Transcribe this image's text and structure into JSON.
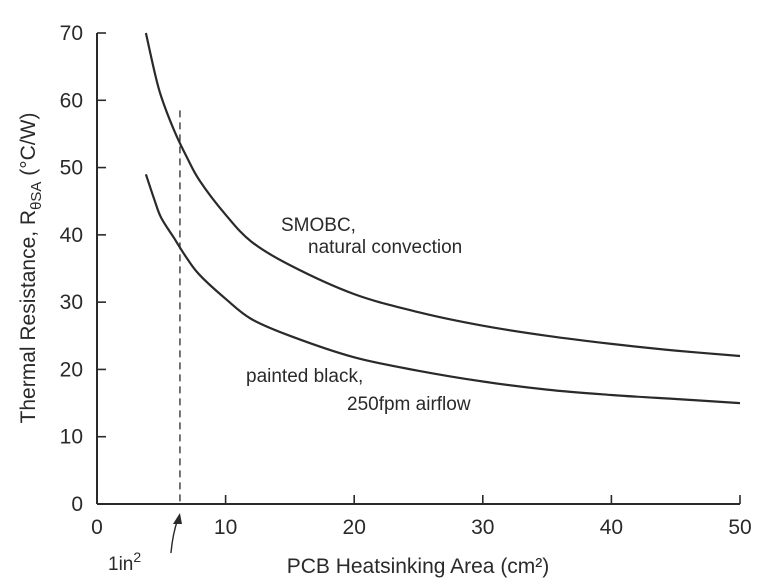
{
  "chart_data": {
    "type": "line",
    "xlabel": "PCB Heatsinking Area (cm²)",
    "ylabel_main": "Thermal Resistance, R",
    "ylabel_sub": "θSA",
    "ylabel_unit": " (°C/W)",
    "xlim": [
      0,
      50
    ],
    "ylim": [
      0,
      70
    ],
    "xticks": [
      "0",
      "10",
      "20",
      "30",
      "40",
      "50"
    ],
    "yticks": [
      "0",
      "10",
      "20",
      "30",
      "40",
      "50",
      "60",
      "70"
    ],
    "grid": false,
    "series": [
      {
        "label_line1": "SMOBC,",
        "label_line2": "natural convection",
        "x": [
          3.8,
          4.5,
          5,
          6,
          7,
          8,
          10,
          12,
          15,
          20,
          25,
          30,
          35,
          40,
          45,
          50
        ],
        "y": [
          70,
          64,
          60.5,
          55.5,
          51.5,
          48,
          43,
          39,
          35.5,
          31.2,
          28.5,
          26.5,
          25,
          23.8,
          22.8,
          22
        ]
      },
      {
        "label_line1": "painted black,",
        "label_line2": "250fpm airflow",
        "x": [
          3.8,
          4.5,
          5,
          6,
          7,
          8,
          10,
          12,
          15,
          20,
          25,
          30,
          35,
          40,
          45,
          50
        ],
        "y": [
          49,
          45,
          42.5,
          39.5,
          36.5,
          34,
          30.5,
          27.5,
          25,
          21.8,
          19.8,
          18.2,
          17,
          16.2,
          15.6,
          15
        ]
      }
    ],
    "marker": {
      "x": 6.45,
      "label": "1in",
      "label_sup": "2"
    }
  }
}
